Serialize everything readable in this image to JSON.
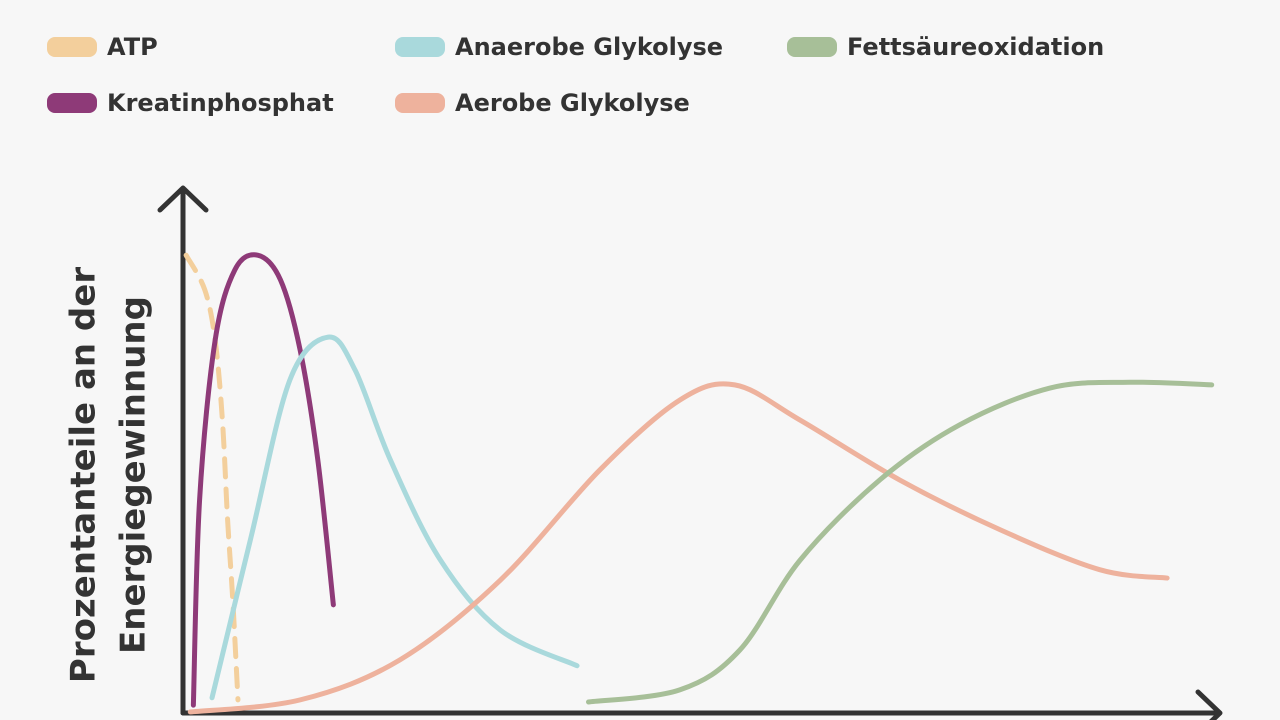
{
  "chart_data": {
    "type": "line",
    "y_label_lines": [
      "Prozentanteile an der",
      "Energiegewinnung"
    ],
    "xlim": [
      0,
      100
    ],
    "ylim": [
      0,
      100
    ],
    "series": [
      {
        "name": "ATP",
        "color": "#f3cf9c",
        "dashed": true,
        "x": [
          0.3,
          2.1,
          3.1,
          3.8,
          4.3,
          4.8,
          5.3
        ],
        "values": [
          87.2,
          80.6,
          71.0,
          55.8,
          36.8,
          21.5,
          2.5
        ]
      },
      {
        "name": "Kreatinphosphat",
        "color": "#8e3a78",
        "dashed": false,
        "x": [
          1.0,
          1.6,
          3.1,
          5.0,
          7.2,
          9.4,
          11.3,
          13.0,
          14.5
        ],
        "values": [
          1.5,
          40.6,
          71.0,
          84.4,
          87.2,
          82.5,
          69.1,
          48.2,
          20.6
        ]
      },
      {
        "name": "Anaerobe Glykolyse",
        "color": "#a9d9dc",
        "dashed": false,
        "x": [
          2.8,
          6.5,
          10.3,
          14.0,
          16.6,
          20.0,
          24.8,
          30.6,
          38.0
        ],
        "values": [
          2.9,
          33.0,
          63.4,
          71.6,
          65.3,
          48.2,
          29.2,
          15.8,
          9.0
        ]
      },
      {
        "name": "Aerobe Glykolyse",
        "color": "#eeb29d",
        "dashed": false,
        "x": [
          0.7,
          11.3,
          20.9,
          30.6,
          40.2,
          47.9,
          53.2,
          59.5,
          69.1,
          78.8,
          88.4,
          94.9
        ],
        "values": [
          0.2,
          2.5,
          10.1,
          25.3,
          46.3,
          59.6,
          62.5,
          55.8,
          44.4,
          34.9,
          27.3,
          25.7
        ]
      },
      {
        "name": "Fettsäureoxidation",
        "color": "#a7bf98",
        "dashed": false,
        "x": [
          39.1,
          47.9,
          53.7,
          59.5,
          67.2,
          74.9,
          83.6,
          91.3,
          99.2
        ],
        "values": [
          2.1,
          4.4,
          12.0,
          29.1,
          44.4,
          54.9,
          61.9,
          63.0,
          62.5
        ]
      }
    ]
  }
}
